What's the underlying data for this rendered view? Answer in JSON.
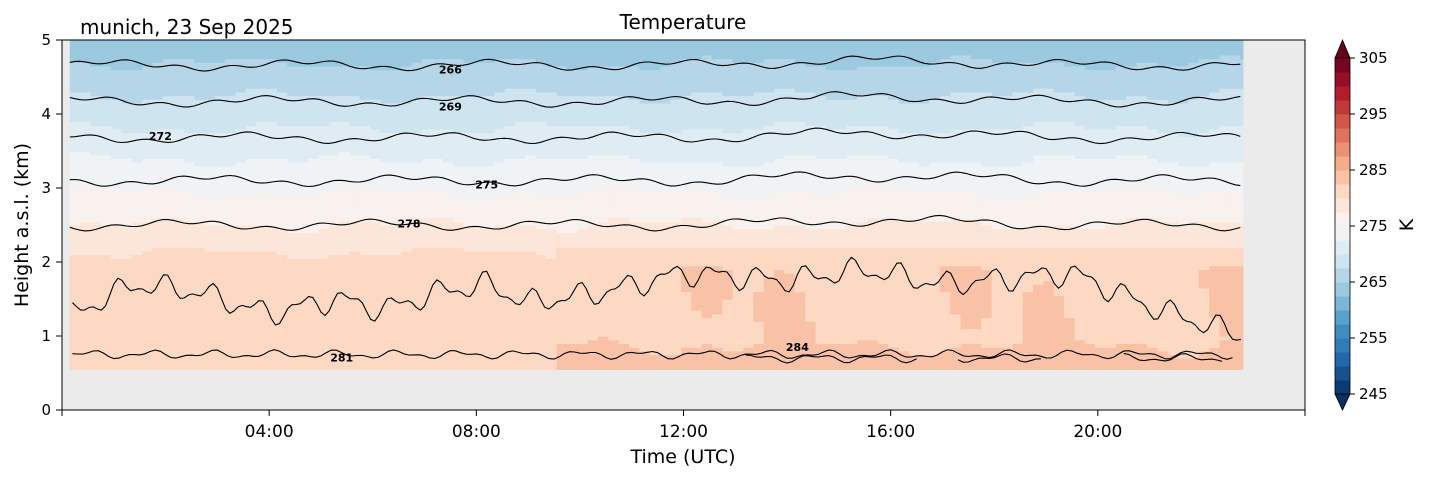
{
  "chart_data": {
    "type": "heatmap",
    "title": "Temperature",
    "subtitle": "munich, 23 Sep 2025",
    "xlabel": "Time (UTC)",
    "ylabel": "Height a.s.l. (km)",
    "xlim_hours": [
      0,
      24
    ],
    "ylim": [
      0,
      5
    ],
    "x_ticks": [
      {
        "value": 4,
        "label": "04:00"
      },
      {
        "value": 8,
        "label": "08:00"
      },
      {
        "value": 12,
        "label": "12:00"
      },
      {
        "value": 16,
        "label": "16:00"
      },
      {
        "value": 20,
        "label": "20:00"
      }
    ],
    "y_ticks": [
      {
        "value": 0,
        "label": "0"
      },
      {
        "value": 1,
        "label": "1"
      },
      {
        "value": 2,
        "label": "2"
      },
      {
        "value": 3,
        "label": "3"
      },
      {
        "value": 4,
        "label": "4"
      },
      {
        "value": 5,
        "label": "5"
      }
    ],
    "data_extent": {
      "time_start": 0.15,
      "time_end": 22.8,
      "height_min": 0.55,
      "height_max": 5.0
    },
    "missing_color": "#ebebeb",
    "colorbar": {
      "label": "K",
      "min": 245,
      "max": 305,
      "step": 2.5,
      "extend": "both",
      "ticks": [
        {
          "value": 245,
          "label": "245"
        },
        {
          "value": 255,
          "label": "255"
        },
        {
          "value": 265,
          "label": "265"
        },
        {
          "value": 275,
          "label": "275"
        },
        {
          "value": 285,
          "label": "285"
        },
        {
          "value": 295,
          "label": "295"
        },
        {
          "value": 305,
          "label": "305"
        }
      ],
      "colormap": "RdBu_r"
    },
    "contours": [
      {
        "level": 266,
        "label": "266",
        "mean_height_km": 4.66
      },
      {
        "level": 269,
        "label": "269",
        "mean_height_km": 4.17
      },
      {
        "level": 272,
        "label": "272",
        "mean_height_km": 3.68
      },
      {
        "level": 275,
        "label": "275",
        "mean_height_km": 3.1
      },
      {
        "level": 278,
        "label": "278",
        "mean_height_km": 2.5
      },
      {
        "level": 281,
        "label": "281",
        "mean_height_km": 0.75
      },
      {
        "level": 284,
        "label": "284",
        "mean_height_km": 0.7
      }
    ]
  }
}
